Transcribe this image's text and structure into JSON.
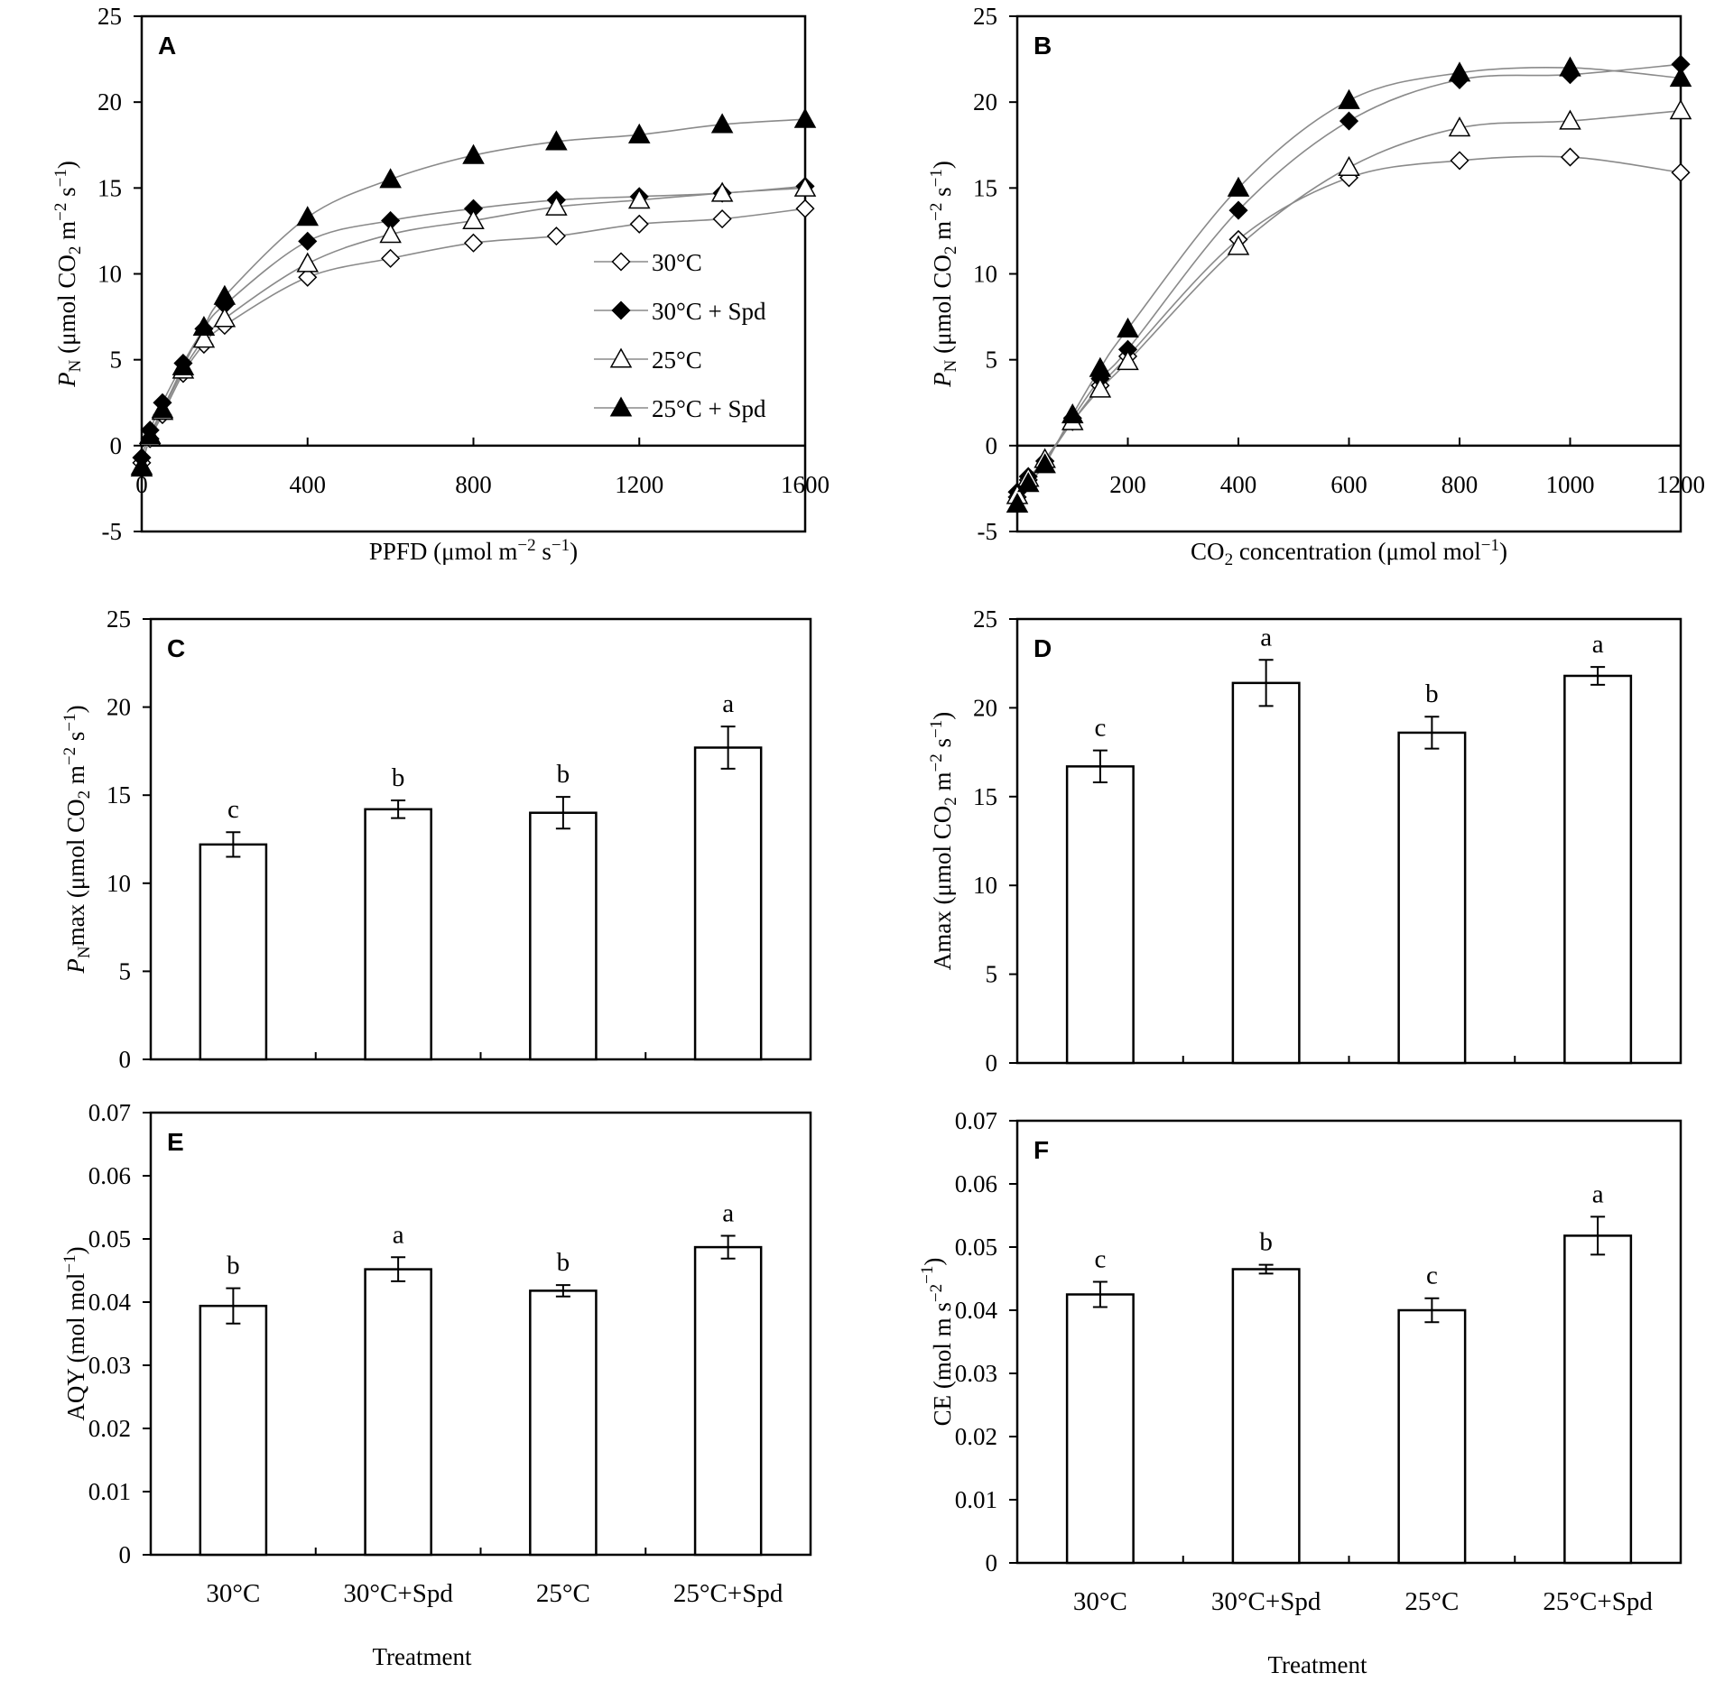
{
  "chart_data": [
    {
      "id": "A",
      "type": "line",
      "panel_label": "A",
      "xlabel": {
        "text": "PPFD",
        "unit": "(μmol m",
        "unit_sup1": "−2",
        "unit_mid": " s",
        "unit_sup2": "−1",
        "unit_end": ")"
      },
      "ylabel": {
        "sym": "P",
        "sub": "N",
        "text": " (μmol CO",
        "sub2": "2",
        "mid": " m",
        "sup1": "−2",
        "mid2": " s",
        "sup2": "−1",
        "end": ")"
      },
      "xlim": [
        0,
        1600
      ],
      "ylim": [
        -5,
        25
      ],
      "xticks": [
        0,
        400,
        800,
        1200,
        1600
      ],
      "xtick_labels": [
        "0",
        "400",
        "800",
        "1200",
        "1600"
      ],
      "yticks": [
        -5,
        0,
        5,
        10,
        15,
        20,
        25
      ],
      "ytick_labels": [
        "-5",
        "0",
        "5",
        "10",
        "15",
        "20",
        "25"
      ],
      "legend": {
        "position": "center-right",
        "entries": [
          "30°C",
          "30°C + Spd",
          "25°C",
          "25°C + Spd"
        ]
      },
      "x": [
        0,
        20,
        50,
        100,
        150,
        200,
        400,
        600,
        800,
        1000,
        1200,
        1400,
        1600
      ],
      "series": [
        {
          "name": "30°C",
          "marker": "diamond",
          "fill": "none",
          "values": [
            -1.0,
            0.4,
            1.8,
            4.2,
            5.9,
            7.0,
            9.8,
            10.9,
            11.8,
            12.2,
            12.9,
            13.2,
            13.8
          ]
        },
        {
          "name": "30°C + Spd",
          "marker": "diamond",
          "fill": "solid",
          "values": [
            -0.7,
            0.9,
            2.5,
            4.8,
            6.8,
            8.2,
            11.9,
            13.1,
            13.8,
            14.3,
            14.5,
            14.7,
            15.1
          ]
        },
        {
          "name": "25°C",
          "marker": "triangle",
          "fill": "none",
          "values": [
            -1.2,
            0.5,
            2.0,
            4.4,
            6.2,
            7.4,
            10.6,
            12.3,
            13.1,
            13.9,
            14.3,
            14.7,
            15.0
          ]
        },
        {
          "name": "25°C + Spd",
          "marker": "triangle",
          "fill": "solid",
          "values": [
            -1.3,
            0.6,
            2.1,
            4.6,
            6.9,
            8.7,
            13.3,
            15.5,
            16.9,
            17.7,
            18.1,
            18.7,
            19.0
          ]
        }
      ]
    },
    {
      "id": "B",
      "type": "line",
      "panel_label": "B",
      "xlabel": {
        "text": "CO",
        "sub": "2",
        "text2": " concentration",
        "unit": "(μmol mol",
        "unit_sup": "−1",
        "unit_end": ")"
      },
      "ylabel": {
        "sym": "P",
        "sub": "N",
        "text": " (μmol CO",
        "sub2": "2",
        "mid": " m",
        "sup1": "−2",
        "mid2": " s",
        "sup2": "−1",
        "end": ")"
      },
      "xlim": [
        0,
        1200
      ],
      "ylim": [
        -5,
        25
      ],
      "xticks": [
        200,
        400,
        600,
        800,
        1000,
        1200
      ],
      "xtick_labels": [
        "200",
        "400",
        "600",
        "800",
        "1000",
        "1200"
      ],
      "yticks": [
        -5,
        0,
        5,
        10,
        15,
        20,
        25
      ],
      "ytick_labels": [
        "-5",
        "0",
        "5",
        "10",
        "15",
        "20",
        "25"
      ],
      "x": [
        0,
        20,
        50,
        100,
        150,
        200,
        400,
        600,
        800,
        1000,
        1200
      ],
      "series": [
        {
          "name": "30°C",
          "marker": "diamond",
          "fill": "none",
          "values": [
            -3.0,
            -2.0,
            -0.9,
            1.4,
            3.5,
            5.2,
            12.0,
            15.6,
            16.6,
            16.8,
            15.9
          ]
        },
        {
          "name": "30°C + Spd",
          "marker": "diamond",
          "fill": "solid",
          "values": [
            -2.7,
            -1.8,
            -0.9,
            1.6,
            3.9,
            5.6,
            13.7,
            18.9,
            21.3,
            21.6,
            22.2
          ]
        },
        {
          "name": "25°C",
          "marker": "triangle",
          "fill": "none",
          "values": [
            -2.9,
            -1.9,
            -0.8,
            1.4,
            3.3,
            4.9,
            11.6,
            16.2,
            18.5,
            18.9,
            19.5
          ]
        },
        {
          "name": "25°C + Spd",
          "marker": "triangle",
          "fill": "solid",
          "values": [
            -3.4,
            -2.2,
            -1.1,
            1.8,
            4.5,
            6.8,
            15.0,
            20.1,
            21.7,
            22.0,
            21.4
          ]
        }
      ]
    },
    {
      "id": "C",
      "type": "bar",
      "panel_label": "C",
      "ylabel": {
        "sym": "P",
        "sub": "N",
        "text": "max (μmol CO",
        "sub2": "2",
        "mid": " m",
        "sup1": "−2",
        "mid2": " s",
        "sup2": "−1",
        "end": ")"
      },
      "categories": [
        "30°C",
        "30°C+Spd",
        "25°C",
        "25°C+Spd"
      ],
      "values": [
        12.2,
        14.2,
        14.0,
        17.7
      ],
      "errors": [
        0.7,
        0.5,
        0.9,
        1.2
      ],
      "letters": [
        "c",
        "b",
        "b",
        "a"
      ],
      "ylim": [
        0,
        25
      ],
      "yticks": [
        0,
        5,
        10,
        15,
        20,
        25
      ],
      "ytick_labels": [
        "0",
        "5",
        "10",
        "15",
        "20",
        "25"
      ]
    },
    {
      "id": "D",
      "type": "bar",
      "panel_label": "D",
      "ylabel": {
        "sym": "",
        "sub": "",
        "text": "Amax (μmol CO",
        "sub2": "2",
        "mid": " m",
        "sup1": "−2",
        "mid2": " s",
        "sup2": "−1",
        "end": ")"
      },
      "categories": [
        "30°C",
        "30°C+Spd",
        "25°C",
        "25°C+Spd"
      ],
      "values": [
        16.7,
        21.4,
        18.6,
        21.8
      ],
      "errors": [
        0.9,
        1.3,
        0.9,
        0.5
      ],
      "letters": [
        "c",
        "a",
        "b",
        "a"
      ],
      "ylim": [
        0,
        25
      ],
      "yticks": [
        0,
        5,
        10,
        15,
        20,
        25
      ],
      "ytick_labels": [
        "0",
        "5",
        "10",
        "15",
        "20",
        "25"
      ]
    },
    {
      "id": "E",
      "type": "bar",
      "panel_label": "E",
      "ylabel": {
        "text": "AQY (mol mol",
        "sup": "−1",
        "end": ")"
      },
      "xlabel": "Treatment",
      "categories": [
        "30°C",
        "30°C+Spd",
        "25°C",
        "25°C+Spd"
      ],
      "values": [
        0.0394,
        0.0452,
        0.0418,
        0.0487
      ],
      "errors": [
        0.0028,
        0.0019,
        0.0009,
        0.0018
      ],
      "letters": [
        "b",
        "a",
        "b",
        "a"
      ],
      "ylim": [
        0,
        0.07
      ],
      "yticks": [
        0,
        0.01,
        0.02,
        0.03,
        0.04,
        0.05,
        0.06,
        0.07
      ],
      "ytick_labels": [
        "0",
        "0.01",
        "0.02",
        "0.03",
        "0.04",
        "0.05",
        "0.06",
        "0.07"
      ]
    },
    {
      "id": "F",
      "type": "bar",
      "panel_label": "F",
      "ylabel": {
        "text": "CE (mol  m",
        "sup1": "−2",
        "mid": " s",
        "sup2": "−1",
        "end": ")"
      },
      "xlabel": "Treatment",
      "categories": [
        "30°C",
        "30°C+Spd",
        "25°C",
        "25°C+Spd"
      ],
      "values": [
        0.0425,
        0.0465,
        0.04,
        0.0518
      ],
      "errors": [
        0.002,
        0.0007,
        0.0019,
        0.003
      ],
      "letters": [
        "c",
        "b",
        "c",
        "a"
      ],
      "ylim": [
        0,
        0.07
      ],
      "yticks": [
        0,
        0.01,
        0.02,
        0.03,
        0.04,
        0.05,
        0.06,
        0.07
      ],
      "ytick_labels": [
        "0",
        "0.01",
        "0.02",
        "0.03",
        "0.04",
        "0.05",
        "0.06",
        "0.07"
      ]
    }
  ]
}
